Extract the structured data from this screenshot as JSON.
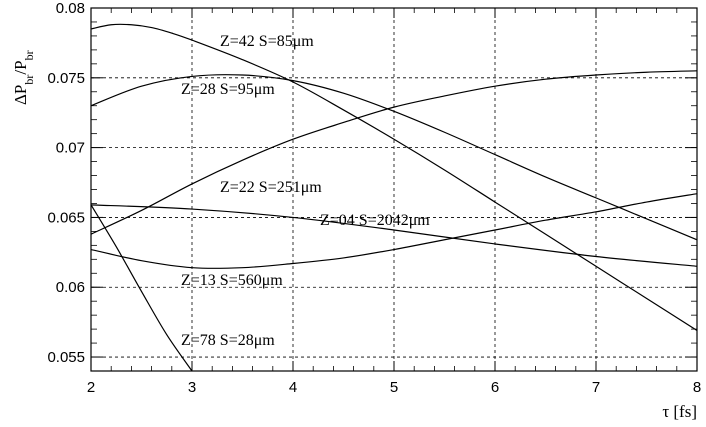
{
  "chart_data": {
    "type": "line",
    "xlabel": "τ [fs]",
    "ylabel": "ΔP_br/P_br",
    "xlim": [
      2,
      8
    ],
    "ylim": [
      0.054,
      0.08
    ],
    "x_ticks": [
      2,
      3,
      4,
      5,
      6,
      7,
      8
    ],
    "y_ticks": [
      0.055,
      0.06,
      0.065,
      0.07,
      0.075,
      0.08
    ],
    "x_tick_labels": [
      "2",
      "3",
      "4",
      "5",
      "6",
      "7",
      "8"
    ],
    "y_tick_labels": [
      "0.055",
      "0.06",
      "0.065",
      "0.07",
      "0.075",
      "0.08"
    ],
    "grid": true,
    "series": [
      {
        "label": "Z=42   S=85μm",
        "x": [
          2.0,
          2.2,
          2.4,
          2.6,
          2.8,
          3.0,
          3.5,
          4.0,
          4.5,
          5.0,
          5.5,
          6.0,
          6.5,
          7.0,
          7.5,
          8.0
        ],
        "y": [
          0.0785,
          0.0788,
          0.0788,
          0.0786,
          0.0782,
          0.0777,
          0.0763,
          0.0747,
          0.0727,
          0.0706,
          0.0684,
          0.0661,
          0.0638,
          0.0615,
          0.0592,
          0.0569
        ]
      },
      {
        "label": "Z=28   S=95μm",
        "x": [
          2.0,
          2.5,
          3.0,
          3.5,
          4.0,
          4.5,
          5.0,
          5.5,
          6.0,
          6.5,
          7.0,
          7.5,
          8.0
        ],
        "y": [
          0.073,
          0.0744,
          0.0751,
          0.0752,
          0.0748,
          0.0739,
          0.0726,
          0.0711,
          0.0695,
          0.0679,
          0.0664,
          0.0649,
          0.0634
        ]
      },
      {
        "label": "Z=22   S=251μm",
        "x": [
          2.0,
          2.5,
          3.0,
          3.5,
          4.0,
          4.5,
          5.0,
          5.5,
          6.0,
          6.5,
          7.0,
          7.5,
          8.0
        ],
        "y": [
          0.0638,
          0.0655,
          0.0674,
          0.0691,
          0.0706,
          0.0718,
          0.0729,
          0.0737,
          0.0744,
          0.0749,
          0.0752,
          0.0754,
          0.0755
        ]
      },
      {
        "label": "Z=04   S=2042μm",
        "x": [
          2.0,
          3.0,
          4.0,
          5.0,
          6.0,
          7.0,
          8.0
        ],
        "y": [
          0.0659,
          0.0656,
          0.065,
          0.0641,
          0.0631,
          0.0622,
          0.0615
        ]
      },
      {
        "label": "Z=13   S=560μm",
        "x": [
          2.0,
          2.5,
          3.0,
          3.5,
          4.0,
          4.5,
          5.0,
          5.5,
          6.0,
          6.5,
          7.0,
          7.5,
          8.0
        ],
        "y": [
          0.0627,
          0.0619,
          0.0614,
          0.0614,
          0.0617,
          0.0621,
          0.0627,
          0.0634,
          0.0641,
          0.0648,
          0.0654,
          0.0661,
          0.0667
        ]
      },
      {
        "label": "Z=78   S=28μm",
        "x": [
          2.0,
          2.25,
          2.5,
          2.75,
          3.0
        ],
        "y": [
          0.0659,
          0.0629,
          0.0597,
          0.0566,
          0.054
        ]
      }
    ]
  }
}
